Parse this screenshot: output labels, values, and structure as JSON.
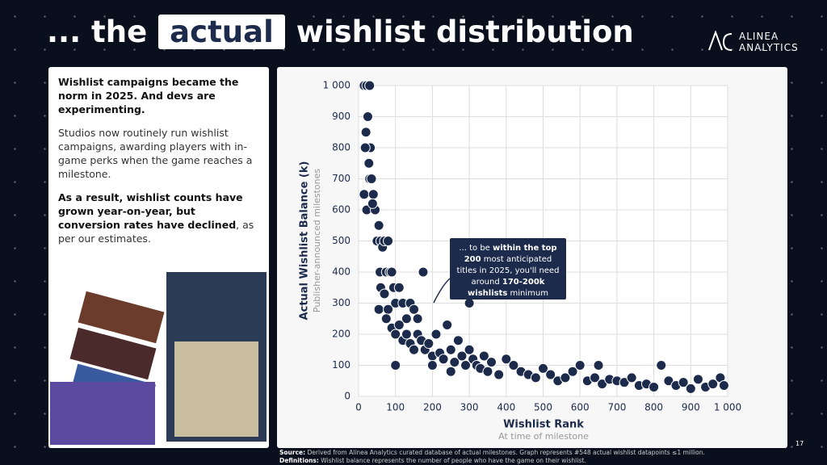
{
  "title_parts": [
    "... the",
    "actual",
    "wishlist distribution"
  ],
  "logo": [
    "ALINEA",
    "ANALYTICS"
  ],
  "page_number": "17",
  "panel": {
    "heading": "Wishlist campaigns became the norm in 2025. And devs are experimenting.",
    "paragraph": "Studios now routinely run wishlist campaigns, awarding players with in-game perks when the game reaches a milestone.",
    "conclusion_bold": "As a result, wishlist counts have grown year-on-year, but conversion rates have declined",
    "conclusion_rest": ", as per our estimates."
  },
  "footer": {
    "source_label": "Source:",
    "source": "Derived from Alinea Analytics curated database of actual milestones. Graph represents #548 actual wishlist datapoints ≤1 million.",
    "definitions_label": "Definitions:",
    "definitions": "Wishlist balance represents the number of people who have the game on their wishlist."
  },
  "chart_data": {
    "type": "scatter",
    "y_label": "Actual Wishlist Balance (k)",
    "y_sublabel": "Publisher-announced milestones",
    "x_label": "Wishlist Rank",
    "x_sublabel": "At time of milestone",
    "annotation": [
      "... to be ",
      "within the top 200",
      " most anticipated titles in 2025, you'll need around ",
      "170-200k wishlists",
      " minimum"
    ],
    "color": "#1c2b4b",
    "grid": true,
    "xlim": [
      0,
      1000
    ],
    "ylim": [
      0,
      1000
    ],
    "xticks": [
      0,
      100,
      200,
      300,
      400,
      500,
      600,
      700,
      800,
      900,
      {
        "value": 1000,
        "label": "1 000"
      }
    ],
    "yticks": [
      0,
      100,
      200,
      300,
      400,
      500,
      600,
      700,
      800,
      900,
      {
        "value": 1000,
        "label": "1 000"
      }
    ],
    "x": [
      15,
      22,
      30,
      25,
      20,
      32,
      18,
      28,
      30,
      35,
      15,
      40,
      22,
      45,
      38,
      55,
      50,
      60,
      65,
      70,
      80,
      58,
      75,
      85,
      90,
      60,
      70,
      95,
      100,
      110,
      120,
      55,
      80,
      130,
      140,
      150,
      160,
      75,
      90,
      100,
      110,
      120,
      130,
      140,
      150,
      160,
      170,
      180,
      190,
      200,
      175,
      210,
      220,
      230,
      240,
      250,
      260,
      270,
      280,
      290,
      300,
      300,
      310,
      320,
      330,
      340,
      350,
      360,
      380,
      400,
      420,
      440,
      460,
      480,
      500,
      520,
      540,
      560,
      580,
      600,
      620,
      640,
      650,
      660,
      680,
      700,
      720,
      740,
      760,
      780,
      800,
      820,
      840,
      860,
      880,
      900,
      920,
      940,
      960,
      980,
      990,
      100,
      200,
      250
    ],
    "values": [
      1000,
      1000,
      1000,
      900,
      850,
      800,
      800,
      750,
      700,
      700,
      650,
      650,
      600,
      600,
      620,
      550,
      500,
      500,
      480,
      500,
      500,
      400,
      400,
      400,
      400,
      350,
      330,
      350,
      300,
      350,
      300,
      280,
      280,
      250,
      300,
      280,
      250,
      250,
      220,
      200,
      230,
      180,
      200,
      170,
      150,
      200,
      180,
      150,
      170,
      130,
      400,
      200,
      140,
      120,
      230,
      150,
      110,
      180,
      130,
      100,
      300,
      150,
      120,
      100,
      90,
      130,
      80,
      110,
      70,
      120,
      100,
      80,
      70,
      60,
      90,
      70,
      50,
      60,
      80,
      100,
      50,
      60,
      100,
      40,
      55,
      50,
      45,
      60,
      35,
      40,
      30,
      100,
      50,
      35,
      45,
      25,
      55,
      30,
      40,
      60,
      35,
      100,
      100,
      80
    ]
  }
}
